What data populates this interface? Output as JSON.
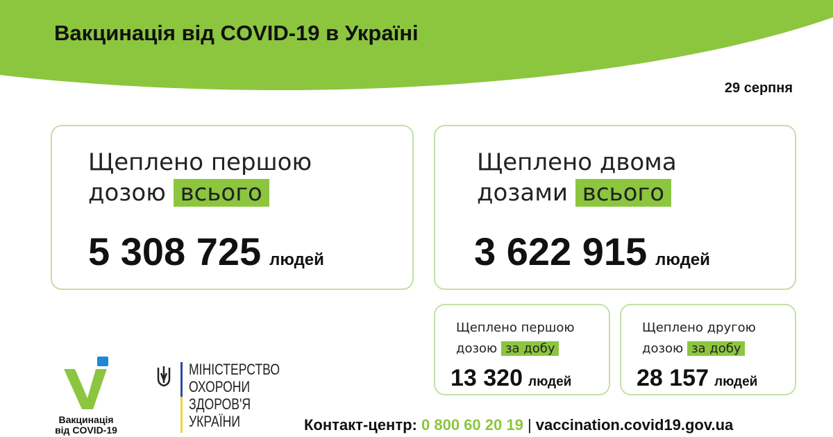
{
  "header": {
    "title": "Вакцинація від COVID-19 в Україні",
    "date": "29 серпня"
  },
  "colors": {
    "accent": "#8cc63f",
    "card_border": "#c5dfa6",
    "logo_blue": "#1e88d6"
  },
  "cards": [
    {
      "line1": "Щеплено першою",
      "line2": "дозою",
      "highlight": "всього",
      "value": "5 308 725",
      "unit": "людей"
    },
    {
      "line1": "Щеплено двома",
      "line2": "дозами",
      "highlight": "всього",
      "value": "3 622 915",
      "unit": "людей"
    },
    {
      "line1": "Щеплено першою",
      "line2": "дозою",
      "highlight": "за добу",
      "value": "13 320",
      "unit": "людей"
    },
    {
      "line1": "Щеплено другою",
      "line2": "дозою",
      "highlight": "за добу",
      "value": "28 157",
      "unit": "людей"
    }
  ],
  "logos": {
    "vaccination_caption_1": "Вакцинація",
    "vaccination_caption_2": "від COVID-19",
    "ministry": [
      "МІНІСТЕРСТВО",
      "ОХОРОНИ",
      "ЗДОРОВ'Я",
      "УКРАЇНИ"
    ]
  },
  "footer": {
    "contact_label": "Контакт-центр:",
    "phone": "0 800 60 20 19",
    "separator": "|",
    "website": "vaccination.covid19.gov.ua"
  }
}
